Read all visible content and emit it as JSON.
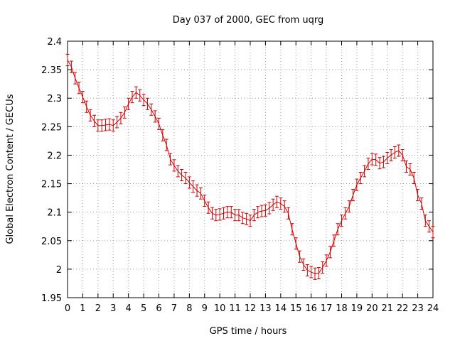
{
  "chart_data": {
    "type": "line",
    "title": "Day 037 of 2000, GEC from uqrg",
    "xlabel": "GPS time / hours",
    "ylabel": "Global Electron Content / GECUs",
    "xlim": [
      0,
      24
    ],
    "ylim": [
      1.95,
      2.4
    ],
    "grid": true,
    "x_ticks": [
      "0",
      "1",
      "2",
      "3",
      "4",
      "5",
      "6",
      "7",
      "8",
      "9",
      "10",
      "11",
      "12",
      "13",
      "14",
      "15",
      "16",
      "17",
      "18",
      "19",
      "20",
      "21",
      "22",
      "23",
      "24"
    ],
    "y_ticks": [
      "1.95",
      "2",
      "2.05",
      "2.1",
      "2.15",
      "2.2",
      "2.25",
      "2.3",
      "2.35",
      "2.4"
    ],
    "series": [
      {
        "name": "GEC",
        "color": "#cc0000",
        "error": 0.01,
        "x": [
          0,
          0.25,
          0.5,
          0.75,
          1,
          1.25,
          1.5,
          1.75,
          2,
          2.25,
          2.5,
          2.75,
          3,
          3.25,
          3.5,
          3.75,
          4,
          4.25,
          4.5,
          4.75,
          5,
          5.25,
          5.5,
          5.75,
          6,
          6.25,
          6.5,
          6.75,
          7,
          7.25,
          7.5,
          7.75,
          8,
          8.25,
          8.5,
          8.75,
          9,
          9.25,
          9.5,
          9.75,
          10,
          10.25,
          10.5,
          10.75,
          11,
          11.25,
          11.5,
          11.75,
          12,
          12.25,
          12.5,
          12.75,
          13,
          13.25,
          13.5,
          13.75,
          14,
          14.25,
          14.5,
          14.75,
          15,
          15.25,
          15.5,
          15.75,
          16,
          16.25,
          16.5,
          16.75,
          17,
          17.25,
          17.5,
          17.75,
          18,
          18.25,
          18.5,
          18.75,
          19,
          19.25,
          19.5,
          19.75,
          20,
          20.25,
          20.5,
          20.75,
          21,
          21.25,
          21.5,
          21.75,
          22,
          22.25,
          22.5,
          22.75,
          23,
          23.25,
          23.5,
          23.75,
          24
        ],
        "y": [
          2.367,
          2.355,
          2.335,
          2.318,
          2.302,
          2.285,
          2.27,
          2.26,
          2.252,
          2.252,
          2.253,
          2.254,
          2.252,
          2.258,
          2.265,
          2.275,
          2.29,
          2.302,
          2.31,
          2.305,
          2.297,
          2.29,
          2.28,
          2.268,
          2.255,
          2.235,
          2.218,
          2.193,
          2.182,
          2.172,
          2.165,
          2.16,
          2.152,
          2.145,
          2.138,
          2.133,
          2.12,
          2.108,
          2.098,
          2.095,
          2.096,
          2.098,
          2.1,
          2.1,
          2.095,
          2.095,
          2.09,
          2.088,
          2.085,
          2.095,
          2.1,
          2.102,
          2.103,
          2.107,
          2.113,
          2.118,
          2.115,
          2.11,
          2.098,
          2.07,
          2.045,
          2.022,
          2.008,
          1.998,
          1.995,
          1.992,
          1.993,
          2.003,
          2.015,
          2.03,
          2.05,
          2.07,
          2.085,
          2.098,
          2.11,
          2.13,
          2.148,
          2.16,
          2.172,
          2.185,
          2.193,
          2.192,
          2.186,
          2.188,
          2.195,
          2.2,
          2.205,
          2.208,
          2.2,
          2.18,
          2.175,
          2.16,
          2.13,
          2.115,
          2.085,
          2.075,
          2.065
        ]
      }
    ]
  }
}
